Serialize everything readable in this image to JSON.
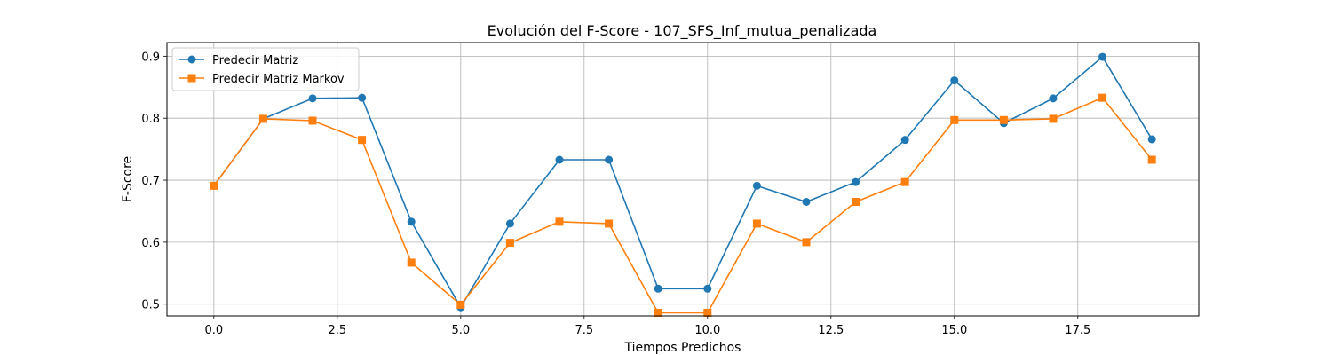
{
  "chart_data": {
    "type": "line",
    "title": "Evolución del F-Score - 107_SFS_Inf_mutua_penalizada",
    "xlabel": "Tiempos Predichos",
    "ylabel": "F-Score",
    "xlim": [
      -0.95,
      19.95
    ],
    "ylim": [
      0.481,
      0.922
    ],
    "xticks": [
      0.0,
      2.5,
      5.0,
      7.5,
      10.0,
      12.5,
      15.0,
      17.5
    ],
    "xtick_labels": [
      "0.0",
      "2.5",
      "5.0",
      "7.5",
      "10.0",
      "12.5",
      "15.0",
      "17.5"
    ],
    "yticks": [
      0.5,
      0.6,
      0.7,
      0.8,
      0.9
    ],
    "ytick_labels": [
      "0.5",
      "0.6",
      "0.7",
      "0.8",
      "0.9"
    ],
    "grid": true,
    "legend_position": "upper-left",
    "x": [
      0,
      1,
      2,
      3,
      4,
      5,
      6,
      7,
      8,
      9,
      10,
      11,
      12,
      13,
      14,
      15,
      16,
      17,
      18,
      19
    ],
    "series": [
      {
        "name": "Predecir Matriz",
        "color": "#1f77b4",
        "marker": "circle",
        "values": [
          0.691,
          0.799,
          0.832,
          0.833,
          0.633,
          0.495,
          0.63,
          0.733,
          0.733,
          0.525,
          0.525,
          0.691,
          0.665,
          0.697,
          0.765,
          0.861,
          0.792,
          0.832,
          0.899,
          0.766
        ]
      },
      {
        "name": "Predecir Matriz Markov",
        "color": "#ff7f0e",
        "marker": "square",
        "values": [
          0.691,
          0.799,
          0.796,
          0.765,
          0.567,
          0.499,
          0.599,
          0.633,
          0.63,
          0.486,
          0.486,
          0.63,
          0.6,
          0.665,
          0.697,
          0.797,
          0.797,
          0.799,
          0.833,
          0.733
        ]
      }
    ]
  }
}
